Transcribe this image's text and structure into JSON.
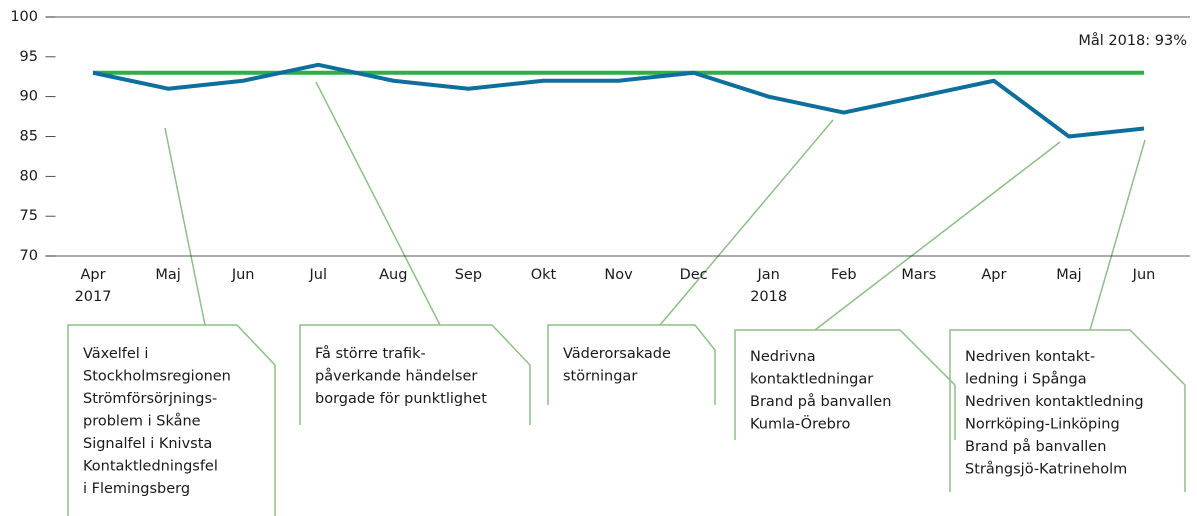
{
  "chart_data": {
    "type": "line",
    "categories": [
      "Apr",
      "Maj",
      "Jun",
      "Jul",
      "Aug",
      "Sep",
      "Okt",
      "Nov",
      "Dec",
      "Jan",
      "Feb",
      "Mars",
      "Apr",
      "Maj",
      "Jun"
    ],
    "years": [
      "2017",
      null,
      null,
      null,
      null,
      null,
      null,
      null,
      null,
      "2018",
      null,
      null,
      null,
      null,
      null
    ],
    "series": [
      {
        "color": "#0e6e9c",
        "values": [
          93,
          91,
          92,
          94,
          92,
          91,
          92,
          92,
          93,
          90,
          88,
          90,
          92,
          85,
          86
        ]
      }
    ],
    "target": {
      "value": 93,
      "label": "Mål 2018: 93%",
      "color": "#2fae47"
    },
    "ylim": [
      70,
      100
    ],
    "yticks": [
      70,
      75,
      80,
      85,
      90,
      95,
      100
    ],
    "grid": false,
    "annotations": [
      {
        "lines": [
          "Växelfel i",
          "Stockholmsregionen",
          "Strömförsörjnings-",
          "problem i Skåne",
          "Signalfel i Knivsta",
          "Kontaktledningsfel",
          "i Flemingsberg"
        ]
      },
      {
        "lines": [
          "Få större trafik-",
          "påverkande händelser",
          "borgade för punktlighet"
        ]
      },
      {
        "lines": [
          "Väderorsakade",
          "störningar"
        ]
      },
      {
        "lines": [
          "Nedrivna",
          "kontaktledningar",
          "Brand på banvallen",
          "Kumla-Örebro"
        ]
      },
      {
        "lines": [
          "Nedriven kontakt-",
          "ledning i Spånga",
          "Nedriven kontaktledning",
          "Norrköping-Linköping",
          "Brand på banvallen",
          "Strångsjö-Katrineholm"
        ]
      }
    ]
  }
}
